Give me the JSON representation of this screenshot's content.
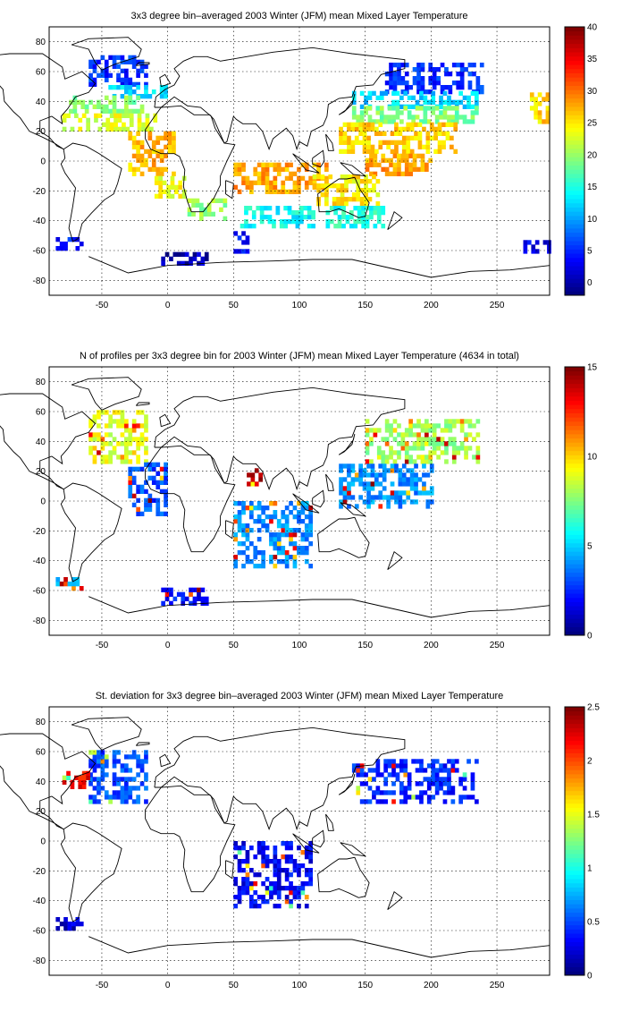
{
  "chart_data": [
    {
      "type": "heatmap",
      "title": "3x3 degree bin–averaged 2003 Winter (JFM) mean Mixed Layer Temperature",
      "xlim": [
        -90,
        290
      ],
      "ylim": [
        -90,
        90
      ],
      "xticks": [
        -50,
        0,
        50,
        100,
        150,
        200,
        250
      ],
      "yticks": [
        -80,
        -60,
        -40,
        -20,
        0,
        20,
        40,
        60,
        80
      ],
      "grid": true,
      "colorbar": {
        "range": [
          -2,
          40
        ],
        "ticks": [
          0,
          5,
          10,
          15,
          20,
          25,
          30,
          35,
          40
        ],
        "colormap": "jet"
      },
      "regions": [
        {
          "lon": [
            -60,
            -15
          ],
          "lat": [
            50,
            70
          ],
          "value": 5
        },
        {
          "lon": [
            -45,
            0
          ],
          "lat": [
            42,
            50
          ],
          "value": 12
        },
        {
          "lon": [
            -75,
            -20
          ],
          "lat": [
            32,
            42
          ],
          "value": 19
        },
        {
          "lon": [
            -80,
            -10
          ],
          "lat": [
            20,
            32
          ],
          "value": 23
        },
        {
          "lon": [
            -30,
            5
          ],
          "lat": [
            -10,
            20
          ],
          "value": 27
        },
        {
          "lon": [
            -10,
            12
          ],
          "lat": [
            -25,
            -10
          ],
          "value": 24
        },
        {
          "lon": [
            15,
            45
          ],
          "lat": [
            -40,
            -25
          ],
          "value": 20
        },
        {
          "lon": [
            50,
            120
          ],
          "lat": [
            -22,
            -2
          ],
          "value": 28
        },
        {
          "lon": [
            55,
            110
          ],
          "lat": [
            -45,
            -30
          ],
          "value": 14
        },
        {
          "lon": [
            50,
            60
          ],
          "lat": [
            -62,
            -48
          ],
          "value": 4
        },
        {
          "lon": [
            -5,
            30
          ],
          "lat": [
            -70,
            -63
          ],
          "value": 0
        },
        {
          "lon": [
            -85,
            -65
          ],
          "lat": [
            -60,
            -52
          ],
          "value": 4
        },
        {
          "lon": [
            165,
            240
          ],
          "lat": [
            45,
            65
          ],
          "value": 5
        },
        {
          "lon": [
            140,
            235
          ],
          "lat": [
            35,
            45
          ],
          "value": 12
        },
        {
          "lon": [
            140,
            235
          ],
          "lat": [
            25,
            35
          ],
          "value": 19
        },
        {
          "lon": [
            130,
            220
          ],
          "lat": [
            5,
            25
          ],
          "value": 26
        },
        {
          "lon": [
            150,
            200
          ],
          "lat": [
            -10,
            5
          ],
          "value": 28
        },
        {
          "lon": [
            110,
            160
          ],
          "lat": [
            -30,
            -10
          ],
          "value": 25
        },
        {
          "lon": [
            120,
            165
          ],
          "lat": [
            -45,
            -30
          ],
          "value": 15
        },
        {
          "lon": [
            270,
            290
          ],
          "lat": [
            -62,
            -55
          ],
          "value": 3
        },
        {
          "lon": [
            275,
            290
          ],
          "lat": [
            25,
            45
          ],
          "value": 26
        }
      ]
    },
    {
      "type": "heatmap",
      "title": "N of profiles per 3x3 degree bin for 2003 Winter (JFM) mean Mixed Layer Temperature  (4634 in total)",
      "xlim": [
        -90,
        290
      ],
      "ylim": [
        -90,
        90
      ],
      "xticks": [
        -50,
        0,
        50,
        100,
        150,
        200,
        250
      ],
      "yticks": [
        -80,
        -60,
        -40,
        -20,
        0,
        20,
        40,
        60,
        80
      ],
      "grid": true,
      "colorbar": {
        "range": [
          0,
          15
        ],
        "ticks": [
          0,
          5,
          10,
          15
        ],
        "colormap": "jet"
      },
      "regions": [
        {
          "lon": [
            -60,
            -15
          ],
          "lat": [
            25,
            60
          ],
          "value": 9
        },
        {
          "lon": [
            -30,
            0
          ],
          "lat": [
            -10,
            25
          ],
          "value": 3
        },
        {
          "lon": [
            60,
            70
          ],
          "lat": [
            10,
            20
          ],
          "value": 14
        },
        {
          "lon": [
            50,
            110
          ],
          "lat": [
            -45,
            0
          ],
          "value": 4
        },
        {
          "lon": [
            150,
            235
          ],
          "lat": [
            25,
            55
          ],
          "value": 8
        },
        {
          "lon": [
            130,
            200
          ],
          "lat": [
            -5,
            25
          ],
          "value": 4
        },
        {
          "lon": [
            -5,
            30
          ],
          "lat": [
            -70,
            -60
          ],
          "value": 2
        },
        {
          "lon": [
            -85,
            -65
          ],
          "lat": [
            -60,
            -52
          ],
          "value": 5
        }
      ]
    },
    {
      "type": "heatmap",
      "title": "St. deviation for 3x3 degree bin–averaged 2003 Winter (JFM) mean Mixed Layer Temperature",
      "xlim": [
        -90,
        290
      ],
      "ylim": [
        -90,
        90
      ],
      "xticks": [
        -50,
        0,
        50,
        100,
        150,
        200,
        250
      ],
      "yticks": [
        -80,
        -60,
        -40,
        -20,
        0,
        20,
        40,
        60,
        80
      ],
      "grid": true,
      "colorbar": {
        "range": [
          0,
          2.5
        ],
        "ticks": [
          0,
          0.5,
          1,
          1.5,
          2,
          2.5
        ],
        "colormap": "jet"
      },
      "regions": [
        {
          "lon": [
            -60,
            -15
          ],
          "lat": [
            25,
            60
          ],
          "value": 0.5
        },
        {
          "lon": [
            -80,
            -60
          ],
          "lat": [
            35,
            45
          ],
          "value": 2.2
        },
        {
          "lon": [
            140,
            235
          ],
          "lat": [
            25,
            55
          ],
          "value": 0.4
        },
        {
          "lon": [
            50,
            110
          ],
          "lat": [
            -45,
            0
          ],
          "value": 0.3
        },
        {
          "lon": [
            -85,
            -65
          ],
          "lat": [
            -60,
            -52
          ],
          "value": 0.2
        }
      ]
    }
  ]
}
